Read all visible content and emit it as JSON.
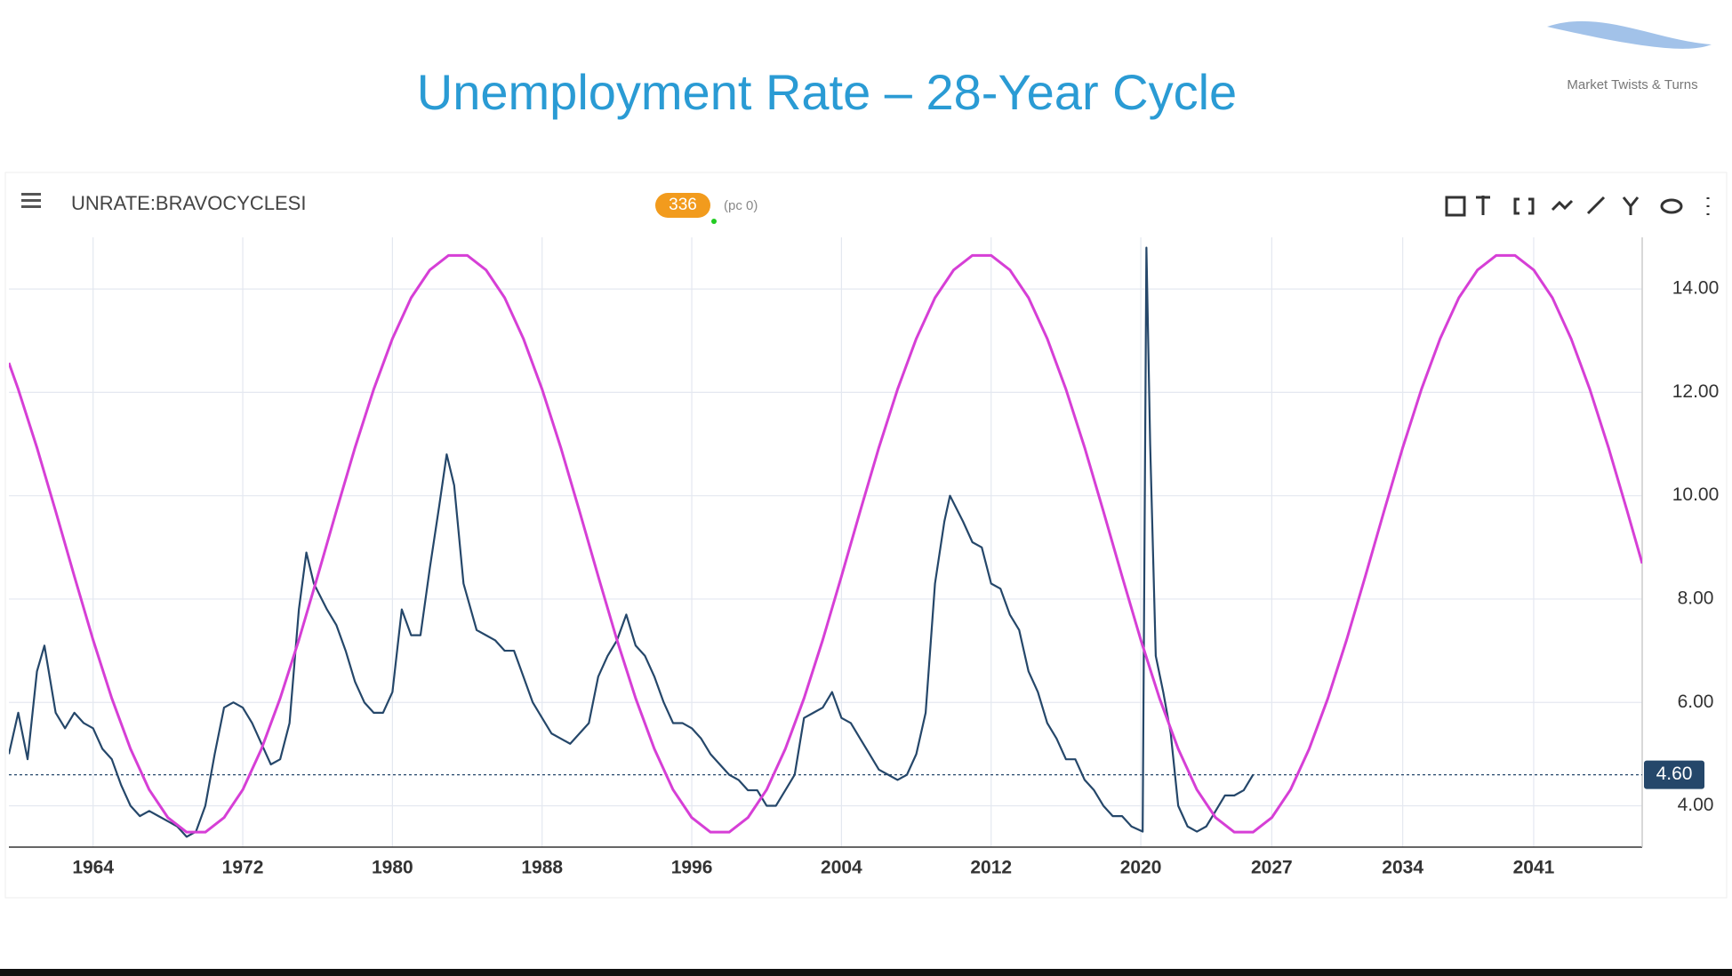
{
  "chart_data": {
    "type": "line",
    "title": "Unemployment Rate – 28-Year Cycle",
    "logo_text": "Market Twists & Turns",
    "toolbar": {
      "symbol": "UNRATE:BRAVOCYCLESI",
      "badge": "336",
      "note": "(pc 0)"
    },
    "xlim": [
      1959.5,
      2046.8
    ],
    "xticks": [
      1964,
      1972,
      1980,
      1988,
      1996,
      2004,
      2012,
      2020,
      2027,
      2034,
      2041
    ],
    "ylim": [
      3.2,
      15.0
    ],
    "yticks": [
      {
        "value": 4,
        "label": "4.00"
      },
      {
        "value": 6,
        "label": "6.00"
      },
      {
        "value": 8,
        "label": "8.00"
      },
      {
        "value": 10,
        "label": "10.00"
      },
      {
        "value": 12,
        "label": "12.00"
      },
      {
        "value": 14,
        "label": "14.00"
      }
    ],
    "grid": true,
    "current_value": {
      "value": 4.6,
      "label": "4.60"
    },
    "series": [
      {
        "color": "#25476a",
        "x": [
          1959.5,
          1960,
          1960.5,
          1961,
          1961.4,
          1962,
          1962.5,
          1963,
          1963.5,
          1964,
          1964.5,
          1965,
          1965.5,
          1966,
          1966.5,
          1967,
          1967.5,
          1968,
          1968.5,
          1969,
          1969.5,
          1970,
          1970.5,
          1971,
          1971.5,
          1972,
          1972.5,
          1973,
          1973.5,
          1974,
          1974.5,
          1975,
          1975.4,
          1975.8,
          1976.5,
          1977,
          1977.5,
          1978,
          1978.5,
          1979,
          1979.5,
          1980,
          1980.5,
          1981,
          1981.5,
          1982,
          1982.5,
          1982.9,
          1983.3,
          1983.8,
          1984.5,
          1985,
          1985.5,
          1986,
          1986.5,
          1987,
          1987.5,
          1988,
          1988.5,
          1989,
          1989.5,
          1990,
          1990.5,
          1991,
          1991.5,
          1992,
          1992.5,
          1993,
          1993.5,
          1994,
          1994.5,
          1995,
          1995.5,
          1996,
          1996.5,
          1997,
          1997.5,
          1998,
          1998.5,
          1999,
          1999.5,
          2000,
          2000.5,
          2001,
          2001.5,
          2002,
          2002.5,
          2003,
          2003.5,
          2004,
          2004.5,
          2005,
          2005.5,
          2006,
          2006.5,
          2007,
          2007.5,
          2008,
          2008.5,
          2009,
          2009.5,
          2009.8,
          2010.5,
          2011,
          2011.5,
          2012,
          2012.5,
          2013,
          2013.5,
          2014,
          2014.5,
          2015,
          2015.5,
          2016,
          2016.5,
          2017,
          2017.5,
          2018,
          2018.5,
          2019,
          2019.5,
          2020.1,
          2020.3,
          2020.5,
          2020.8,
          2021.2,
          2021.6,
          2022,
          2022.5,
          2023,
          2023.5,
          2024,
          2024.5,
          2025,
          2025.5,
          2026
        ],
        "values": [
          5.0,
          5.8,
          4.9,
          6.6,
          7.1,
          5.8,
          5.5,
          5.8,
          5.6,
          5.5,
          5.1,
          4.9,
          4.4,
          4.0,
          3.8,
          3.9,
          3.8,
          3.7,
          3.6,
          3.4,
          3.5,
          4.0,
          5.0,
          5.9,
          6.0,
          5.9,
          5.6,
          5.2,
          4.8,
          4.9,
          5.6,
          7.8,
          8.9,
          8.3,
          7.8,
          7.5,
          7.0,
          6.4,
          6.0,
          5.8,
          5.8,
          6.2,
          7.8,
          7.3,
          7.3,
          8.6,
          9.8,
          10.8,
          10.2,
          8.3,
          7.4,
          7.3,
          7.2,
          7.0,
          7.0,
          6.5,
          6.0,
          5.7,
          5.4,
          5.3,
          5.2,
          5.4,
          5.6,
          6.5,
          6.9,
          7.2,
          7.7,
          7.1,
          6.9,
          6.5,
          6.0,
          5.6,
          5.6,
          5.5,
          5.3,
          5.0,
          4.8,
          4.6,
          4.5,
          4.3,
          4.3,
          4.0,
          4.0,
          4.3,
          4.6,
          5.7,
          5.8,
          5.9,
          6.2,
          5.7,
          5.6,
          5.3,
          5.0,
          4.7,
          4.6,
          4.5,
          4.6,
          5.0,
          5.8,
          8.3,
          9.5,
          10.0,
          9.5,
          9.1,
          9.0,
          8.3,
          8.2,
          7.7,
          7.4,
          6.6,
          6.2,
          5.6,
          5.3,
          4.9,
          4.9,
          4.5,
          4.3,
          4.0,
          3.8,
          3.8,
          3.6,
          3.5,
          14.8,
          11.0,
          6.9,
          6.2,
          5.4,
          4.0,
          3.6,
          3.5,
          3.6,
          3.9,
          4.2,
          4.2,
          4.3,
          4.6
        ]
      },
      {
        "color": "#d63fd6",
        "x": [
          1959.5,
          1960,
          1961,
          1962,
          1963,
          1964,
          1965,
          1966,
          1967,
          1968,
          1969,
          1970,
          1971,
          1972,
          1973,
          1974,
          1975,
          1976,
          1977,
          1978,
          1979,
          1980,
          1981,
          1982,
          1983,
          1984,
          1985,
          1986,
          1987,
          1988,
          1989,
          1990,
          1991,
          1992,
          1993,
          1994,
          1995,
          1996,
          1997,
          1998,
          1999,
          2000,
          2001,
          2002,
          2003,
          2004,
          2005,
          2006,
          2007,
          2008,
          2009,
          2010,
          2011,
          2012,
          2013,
          2014,
          2015,
          2016,
          2017,
          2018,
          2019,
          2020,
          2021,
          2022,
          2023,
          2024,
          2025,
          2026,
          2027,
          2028,
          2029,
          2030,
          2031,
          2032,
          2033,
          2034,
          2035,
          2036,
          2037,
          2038,
          2039,
          2040,
          2041,
          2042,
          2043,
          2044,
          2045,
          2046,
          2046.8
        ],
        "values": [
          12.57,
          12.06,
          10.93,
          9.7,
          8.44,
          7.21,
          6.08,
          5.1,
          4.31,
          3.77,
          3.49,
          3.49,
          3.77,
          4.31,
          5.1,
          6.08,
          7.21,
          8.44,
          9.7,
          10.93,
          12.06,
          13.04,
          13.83,
          14.37,
          14.65,
          14.65,
          14.37,
          13.83,
          13.04,
          12.06,
          10.93,
          9.7,
          8.44,
          7.21,
          6.08,
          5.1,
          4.31,
          3.77,
          3.49,
          3.49,
          3.77,
          4.31,
          5.1,
          6.08,
          7.21,
          8.44,
          9.7,
          10.93,
          12.06,
          13.04,
          13.83,
          14.37,
          14.65,
          14.65,
          14.37,
          13.83,
          13.04,
          12.06,
          10.93,
          9.7,
          8.44,
          7.21,
          6.08,
          5.1,
          4.31,
          3.77,
          3.49,
          3.49,
          3.77,
          4.31,
          5.1,
          6.08,
          7.21,
          8.44,
          9.7,
          10.93,
          12.06,
          13.04,
          13.83,
          14.37,
          14.65,
          14.65,
          14.37,
          13.83,
          13.04,
          12.06,
          10.93,
          9.7,
          8.69
        ]
      }
    ]
  }
}
